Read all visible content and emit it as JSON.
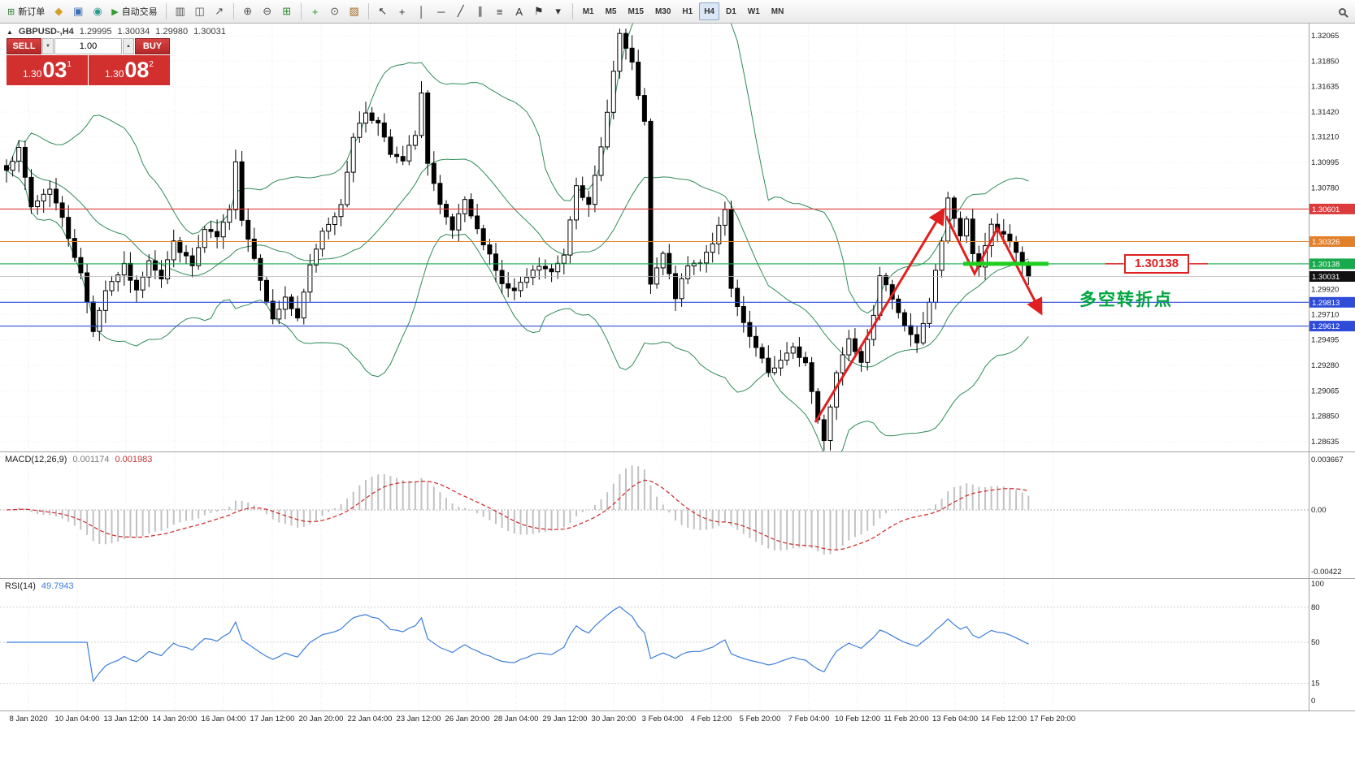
{
  "toolbar": {
    "new_order": {
      "label": "新订单"
    },
    "autotrading": {
      "label": "自动交易"
    },
    "icon_groups": [
      [
        {
          "name": "new-chart-icon",
          "glyph": "◆",
          "color": "#d1a02a"
        },
        {
          "name": "profiles-icon",
          "glyph": "▣",
          "color": "#3b6fb5"
        },
        {
          "name": "market-watch-icon",
          "glyph": "◉",
          "color": "#2a9d8f"
        }
      ],
      [
        {
          "name": "bar-chart-icon",
          "glyph": "▥",
          "color": "#555555"
        },
        {
          "name": "candlestick-chart-icon",
          "glyph": "◫",
          "color": "#555555"
        },
        {
          "name": "line-chart-icon",
          "glyph": "↗",
          "color": "#555555"
        }
      ],
      [
        {
          "name": "zoom-in-icon",
          "glyph": "⊕",
          "color": "#555555"
        },
        {
          "name": "zoom-out-icon",
          "glyph": "⊖",
          "color": "#555555"
        },
        {
          "name": "tile-windows-icon",
          "glyph": "⊞",
          "color": "#2e8b2e"
        }
      ],
      [
        {
          "name": "indicators-add-icon",
          "glyph": "+",
          "color": "#1d9e1d"
        },
        {
          "name": "periods-icon",
          "glyph": "⊙",
          "color": "#555555"
        },
        {
          "name": "templates-icon",
          "glyph": "▨",
          "color": "#a06a2a"
        }
      ],
      [
        {
          "name": "cursor-icon",
          "glyph": "↖",
          "color": "#333333"
        },
        {
          "name": "crosshair-icon",
          "glyph": "+",
          "color": "#333333"
        },
        {
          "name": "vertical-line-icon",
          "glyph": "│",
          "color": "#333333"
        },
        {
          "name": "horizontal-line-icon",
          "glyph": "─",
          "color": "#333333"
        },
        {
          "name": "trendline-icon",
          "glyph": "╱",
          "color": "#333333"
        },
        {
          "name": "channel-icon",
          "glyph": "∥",
          "color": "#333333"
        },
        {
          "name": "fibonacci-icon",
          "glyph": "≡",
          "color": "#333333"
        },
        {
          "name": "text-icon",
          "glyph": "A",
          "color": "#333333"
        },
        {
          "name": "arrows-icon",
          "glyph": "⚑",
          "color": "#333333"
        },
        {
          "name": "shapes-dropdown-icon",
          "glyph": "▾",
          "color": "#333333"
        }
      ]
    ],
    "timeframes": [
      "M1",
      "M5",
      "M15",
      "M30",
      "H1",
      "H4",
      "D1",
      "W1",
      "MN"
    ],
    "active_timeframe": "H4"
  },
  "symbol_info": {
    "collapse_glyph": "▲",
    "symbol": "GBPUSD-,H4",
    "open": "1.29995",
    "high": "1.30034",
    "low": "1.29980",
    "close": "1.30031"
  },
  "trade_panel": {
    "sell_label": "SELL",
    "buy_label": "BUY",
    "volume": "1.00",
    "down_glyph": "▼",
    "up_glyph": "▲",
    "sell_head": "1.30",
    "sell_pips": "03",
    "sell_sup": "1",
    "buy_head": "1.30",
    "buy_pips": "08",
    "buy_sup": "2"
  },
  "main_chart": {
    "price_max": 1.32065,
    "price_min": 1.28635,
    "axis_ticks": [
      "1.32065",
      "1.31850",
      "1.31635",
      "1.31420",
      "1.31210",
      "1.30995",
      "1.30780",
      "1.29920",
      "1.29710",
      "1.29495",
      "1.29280",
      "1.29065",
      "1.28850",
      "1.28635"
    ],
    "levels": [
      {
        "label": "1.30601",
        "price": 1.30601,
        "color": "#dd3b3b"
      },
      {
        "label": "1.30326",
        "price": 1.30326,
        "color": "#e2802b"
      },
      {
        "label": "1.30138",
        "price": 1.30138,
        "color": "#17a94c"
      },
      {
        "label": "1.30031",
        "price": 1.30031,
        "color": "#111111",
        "current": true
      },
      {
        "label": "1.29813",
        "price": 1.29813,
        "color": "#2f4cd8"
      },
      {
        "label": "1.29612",
        "price": 1.29612,
        "color": "#2f4cd8"
      }
    ]
  },
  "indicators": {
    "macd": {
      "name": "MACD(12,26,9)",
      "value_main": "0.001174",
      "value_signal": "0.001983",
      "axis": [
        "0.003667",
        "0.00",
        "-0.00422"
      ],
      "histogram_color": "#c2c2c2",
      "signal_color": "#d23333"
    },
    "rsi": {
      "name": "RSI(14)",
      "value": "49.7943",
      "axis": [
        "100",
        "80",
        "50",
        "15",
        "0"
      ],
      "levels": [
        80,
        50,
        15
      ],
      "line_color": "#3c7edb"
    }
  },
  "annotations": {
    "price_callout": "1.30138",
    "note": "多空转折点",
    "arrow_color": "#e02020",
    "support_color": "#1fcf1f",
    "note_color": "#00a63f",
    "support_price": 1.30138
  },
  "time_axis": [
    "8 Jan 2020",
    "10 Jan 04:00",
    "13 Jan 12:00",
    "14 Jan 20:00",
    "16 Jan 04:00",
    "17 Jan 12:00",
    "20 Jan 20:00",
    "22 Jan 04:00",
    "23 Jan 12:00",
    "26 Jan 20:00",
    "28 Jan 04:00",
    "29 Jan 12:00",
    "30 Jan 20:00",
    "3 Feb 04:00",
    "4 Feb 12:00",
    "5 Feb 20:00",
    "7 Feb 04:00",
    "10 Feb 12:00",
    "11 Feb 20:00",
    "13 Feb 04:00",
    "14 Feb 12:00",
    "17 Feb 20:00"
  ],
  "chart_data": {
    "type": "candlestick",
    "symbol": "GBPUSD",
    "timeframe": "H4",
    "title": "GBPUSD-,H4",
    "overlays": [
      "Bollinger Bands (20,2)"
    ],
    "bollinger_color": "#2e8b57",
    "candle_count": 166,
    "seed": 7,
    "noise": 0.00045,
    "close_waypoints": [
      [
        0,
        1.3095
      ],
      [
        2,
        1.311
      ],
      [
        4,
        1.3062
      ],
      [
        7,
        1.3078
      ],
      [
        9,
        1.3052
      ],
      [
        12,
        1.3005
      ],
      [
        14,
        1.2958
      ],
      [
        16,
        1.2992
      ],
      [
        19,
        1.3012
      ],
      [
        21,
        1.299
      ],
      [
        23,
        1.3018
      ],
      [
        25,
        1.3002
      ],
      [
        27,
        1.3032
      ],
      [
        30,
        1.3012
      ],
      [
        32,
        1.3042
      ],
      [
        34,
        1.3036
      ],
      [
        36,
        1.3058
      ],
      [
        37,
        1.3102
      ],
      [
        38,
        1.3052
      ],
      [
        41,
        1.3002
      ],
      [
        43,
        1.2966
      ],
      [
        45,
        1.2986
      ],
      [
        47,
        1.2966
      ],
      [
        49,
        1.3012
      ],
      [
        51,
        1.3042
      ],
      [
        54,
        1.3062
      ],
      [
        56,
        1.3122
      ],
      [
        58,
        1.3142
      ],
      [
        60,
        1.3132
      ],
      [
        62,
        1.3106
      ],
      [
        64,
        1.31
      ],
      [
        66,
        1.3124
      ],
      [
        67,
        1.3158
      ],
      [
        68,
        1.3098
      ],
      [
        70,
        1.3062
      ],
      [
        72,
        1.3042
      ],
      [
        74,
        1.3066
      ],
      [
        76,
        1.3042
      ],
      [
        78,
        1.3022
      ],
      [
        80,
        1.2996
      ],
      [
        82,
        1.299
      ],
      [
        84,
        1.3002
      ],
      [
        86,
        1.3012
      ],
      [
        88,
        1.3006
      ],
      [
        90,
        1.3022
      ],
      [
        92,
        1.3082
      ],
      [
        94,
        1.3062
      ],
      [
        96,
        1.3112
      ],
      [
        98,
        1.3176
      ],
      [
        99,
        1.3208
      ],
      [
        101,
        1.3182
      ],
      [
        103,
        1.3132
      ],
      [
        104,
        1.2996
      ],
      [
        106,
        1.3022
      ],
      [
        108,
        1.2986
      ],
      [
        110,
        1.3012
      ],
      [
        112,
        1.3016
      ],
      [
        114,
        1.3032
      ],
      [
        116,
        1.3058
      ],
      [
        117,
        1.2992
      ],
      [
        119,
        1.2962
      ],
      [
        121,
        1.2942
      ],
      [
        123,
        1.2922
      ],
      [
        125,
        1.2932
      ],
      [
        127,
        1.2942
      ],
      [
        129,
        1.293
      ],
      [
        131,
        1.2882
      ],
      [
        132,
        1.2866
      ],
      [
        134,
        1.2922
      ],
      [
        136,
        1.2952
      ],
      [
        138,
        1.2932
      ],
      [
        140,
        1.2972
      ],
      [
        141,
        1.3002
      ],
      [
        143,
        1.2986
      ],
      [
        145,
        1.2962
      ],
      [
        147,
        1.2946
      ],
      [
        149,
        1.2982
      ],
      [
        151,
        1.3032
      ],
      [
        152,
        1.3068
      ],
      [
        154,
        1.3036
      ],
      [
        155,
        1.3052
      ],
      [
        156,
        1.3022
      ],
      [
        157,
        1.3012
      ],
      [
        159,
        1.3046
      ],
      [
        161,
        1.304
      ],
      [
        163,
        1.3022
      ],
      [
        165,
        1.30031
      ]
    ]
  }
}
